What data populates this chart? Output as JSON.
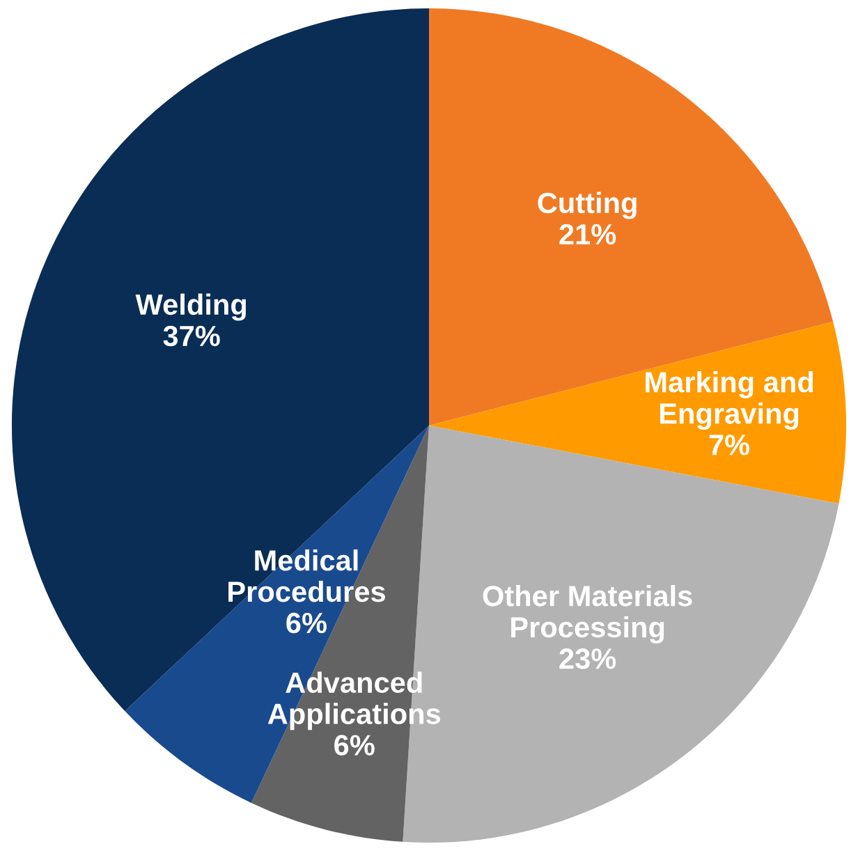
{
  "chart_data": {
    "type": "pie",
    "categories": [
      "Cutting",
      "Marking and Engraving",
      "Other Materials Processing",
      "Advanced Applications",
      "Medical Procedures",
      "Welding"
    ],
    "values": [
      21,
      7,
      23,
      6,
      6,
      37
    ],
    "value_labels": [
      "21%",
      "7%",
      "23%",
      "6%",
      "6%",
      "37%"
    ],
    "colors": [
      "#f07a24",
      "#ff9a00",
      "#b3b3b3",
      "#636363",
      "#1a4a8e",
      "#0a2d55"
    ],
    "legend": false
  }
}
